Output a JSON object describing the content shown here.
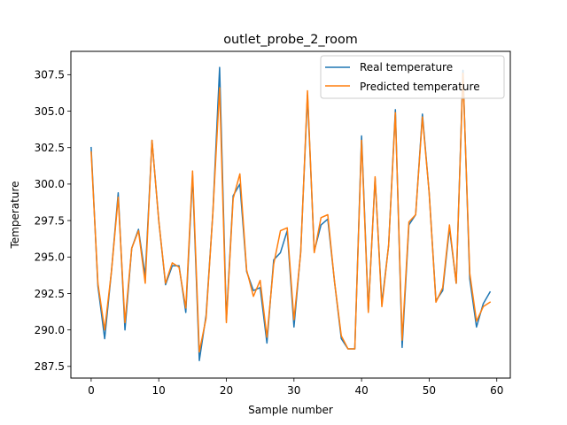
{
  "chart_data": {
    "type": "line",
    "title": "outlet_probe_2_room",
    "xlabel": "Sample number",
    "ylabel": "Temperature",
    "xlim": [
      -3,
      62
    ],
    "ylim": [
      286.7,
      309.1
    ],
    "xticks": [
      0,
      10,
      20,
      30,
      40,
      50,
      60
    ],
    "yticks": [
      287.5,
      290.0,
      292.5,
      295.0,
      297.5,
      300.0,
      302.5,
      305.0,
      307.5
    ],
    "ytick_labels": [
      "287.5",
      "290.0",
      "292.5",
      "295.0",
      "297.5",
      "300.0",
      "302.5",
      "305.0",
      "307.5"
    ],
    "grid": false,
    "legend_position": "top-right",
    "series": [
      {
        "name": "Real temperature",
        "color": "#1f77b4",
        "x": [
          0,
          1,
          2,
          3,
          4,
          5,
          6,
          7,
          8,
          9,
          10,
          11,
          12,
          13,
          14,
          15,
          16,
          17,
          18,
          19,
          20,
          21,
          22,
          23,
          24,
          25,
          26,
          27,
          28,
          29,
          30,
          31,
          32,
          33,
          34,
          35,
          36,
          37,
          38,
          39,
          40,
          41,
          42,
          43,
          44,
          45,
          46,
          47,
          48,
          49,
          50,
          51,
          52,
          53,
          54,
          55,
          56,
          57,
          58,
          59
        ],
        "values": [
          302.5,
          293.0,
          289.4,
          294.0,
          299.4,
          290.0,
          295.6,
          296.9,
          293.7,
          303.0,
          297.5,
          293.1,
          294.4,
          294.4,
          291.2,
          300.6,
          287.9,
          291.0,
          298.0,
          308.0,
          290.7,
          299.2,
          300.0,
          294.0,
          292.7,
          292.9,
          289.1,
          294.8,
          295.3,
          296.8,
          290.2,
          295.4,
          306.1,
          295.4,
          297.2,
          297.6,
          293.3,
          289.4,
          288.7,
          288.7,
          303.3,
          291.3,
          300.4,
          291.8,
          295.8,
          305.1,
          288.8,
          297.2,
          297.9,
          304.8,
          299.4,
          292.0,
          292.7,
          297.0,
          293.2,
          307.8,
          293.5,
          290.2,
          291.8,
          292.6
        ]
      },
      {
        "name": "Predicted temperature",
        "color": "#ff7f0e",
        "x": [
          0,
          1,
          2,
          3,
          4,
          5,
          6,
          7,
          8,
          9,
          10,
          11,
          12,
          13,
          14,
          15,
          16,
          17,
          18,
          19,
          20,
          21,
          22,
          23,
          24,
          25,
          26,
          27,
          28,
          29,
          30,
          31,
          32,
          33,
          34,
          35,
          36,
          37,
          38,
          39,
          40,
          41,
          42,
          43,
          44,
          45,
          46,
          47,
          48,
          49,
          50,
          51,
          52,
          53,
          54,
          55,
          56,
          57,
          58,
          59
        ],
        "values": [
          302.2,
          293.2,
          290.0,
          294.0,
          299.1,
          290.5,
          295.6,
          296.8,
          293.2,
          303.0,
          297.5,
          293.2,
          294.6,
          294.3,
          291.5,
          300.9,
          288.5,
          290.8,
          298.0,
          306.6,
          290.5,
          299.0,
          300.7,
          294.1,
          292.3,
          293.4,
          289.5,
          294.5,
          296.8,
          297.0,
          290.7,
          295.3,
          306.4,
          295.3,
          297.7,
          297.9,
          293.3,
          289.6,
          288.7,
          288.7,
          303.0,
          291.2,
          300.5,
          291.6,
          295.8,
          304.9,
          289.3,
          297.4,
          297.9,
          304.6,
          299.4,
          291.9,
          292.9,
          297.2,
          293.2,
          307.6,
          293.9,
          290.6,
          291.6,
          291.9
        ]
      }
    ]
  }
}
